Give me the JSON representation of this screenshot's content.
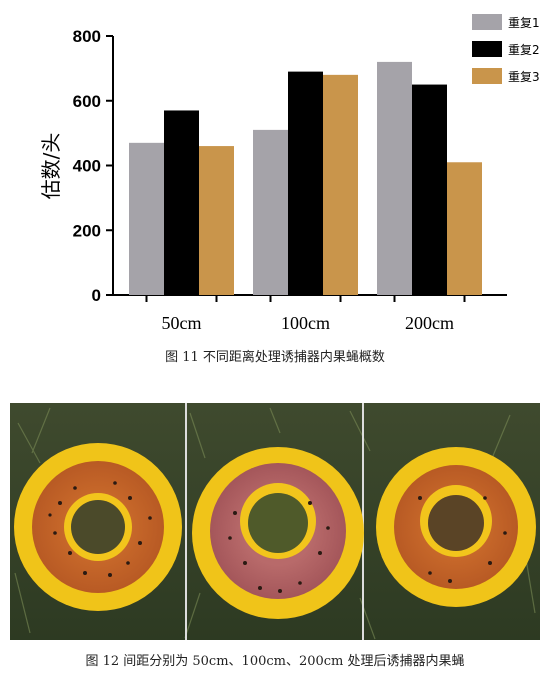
{
  "chart_data": {
    "type": "bar",
    "title": "",
    "xlabel": "",
    "ylabel": "估数/头",
    "ylim": [
      0,
      800
    ],
    "yticks": [
      "0",
      "200",
      "400",
      "600",
      "800"
    ],
    "categories": [
      "50cm",
      "100cm",
      "200cm"
    ],
    "series": [
      {
        "name": "重复1",
        "color": "#a5a3a9",
        "values": [
          470,
          510,
          720
        ]
      },
      {
        "name": "重复2",
        "color": "#000000",
        "values": [
          570,
          690,
          650
        ]
      },
      {
        "name": "重复3",
        "color": "#c9954b",
        "values": [
          460,
          680,
          410
        ]
      }
    ],
    "grid": false,
    "legend": "top-right"
  },
  "figure11": {
    "caption": "图 11 不同距离处理诱捕器内果蝇概数"
  },
  "figure12": {
    "caption": "图 12 间距分别为 50cm、100cm、200cm 处理后诱捕器内果蝇"
  }
}
